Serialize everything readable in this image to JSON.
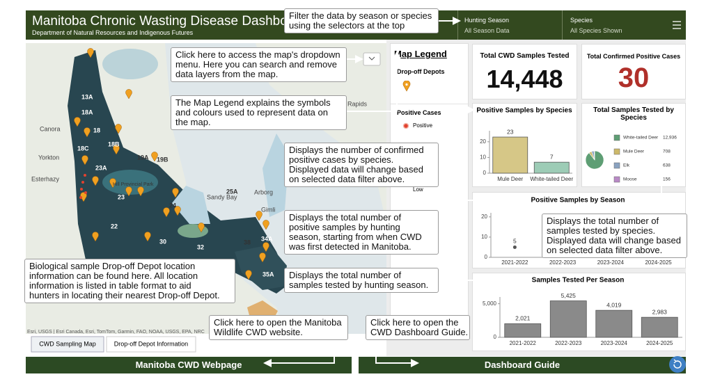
{
  "header": {
    "title": "Manitoba Chronic Wasting Disease Dashboard",
    "subtitle": "Department of Natural Resources and Indigenous Futures",
    "filters": [
      {
        "label": "Hunting Season",
        "value": "All Season Data"
      },
      {
        "label": "Species",
        "value": "All Species Shown"
      }
    ]
  },
  "map": {
    "labels": [
      "13A",
      "18A",
      "18",
      "18B",
      "18C",
      "19A",
      "19B",
      "23A",
      "23",
      "22",
      "24",
      "25A",
      "30",
      "32",
      "38",
      "34A",
      "35A",
      "Canora",
      "Yorkton",
      "Esterhazy",
      "Rapids",
      "Sandy Bay",
      "Hill Provincial Park",
      "Gimli",
      "Arborg"
    ],
    "attribution": "Esri, USGS | Esri Canada, Esri, TomTom, Garmin, FAO, NOAA, USGS, EPA, NRC",
    "tabs": [
      "CWD Sampling Map",
      "Drop-off Depot Information"
    ]
  },
  "legend": {
    "title": "Map Legend",
    "depots": "Drop-off Depots",
    "positive_cases": "Positive Cases",
    "positive": "Positive",
    "low": "Low"
  },
  "cards": [
    {
      "title": "Total CWD Samples Tested",
      "value": "14,448"
    },
    {
      "title": "Total Confirmed Positive Cases",
      "value": "30"
    }
  ],
  "charts": [
    {
      "type": "bar",
      "title": "Positive Samples by Species",
      "categories": [
        "Mule Deer",
        "White-tailed Deer"
      ],
      "values": [
        23,
        7
      ],
      "colors": [
        "#d6c787",
        "#9dccb6"
      ],
      "ylim": [
        0,
        27
      ],
      "yticks": [
        0,
        10,
        20
      ]
    },
    {
      "type": "pie",
      "title": "Total Samples Tested by Species",
      "categories": [
        "White-tailed Deer",
        "Mule Deer",
        "Elk",
        "Moose"
      ],
      "values": [
        12936,
        708,
        638,
        156
      ],
      "value_labels": [
        "12,936",
        "708",
        "638",
        "156"
      ],
      "colors": [
        "#5e9e74",
        "#cdb96a",
        "#8aa2c0",
        "#b98ac6"
      ]
    },
    {
      "type": "line",
      "title": "Positive Samples by Season",
      "categories": [
        "2021-2022",
        "2022-2023",
        "2023-2024",
        "2024-2025"
      ],
      "values": [
        5,
        null,
        null,
        null
      ],
      "color": "#555555",
      "ylim": [
        0,
        22
      ],
      "yticks": [
        0,
        10,
        20
      ]
    },
    {
      "type": "bar",
      "title": "Samples Tested Per Season",
      "categories": [
        "2021-2022",
        "2022-2023",
        "2023-2024",
        "2024-2025"
      ],
      "values": [
        2021,
        5425,
        4019,
        2983
      ],
      "value_labels": [
        "2,021",
        "5,425",
        "4,019",
        "2,983"
      ],
      "colors": [
        "#8a8a8a",
        "#8a8a8a",
        "#8a8a8a",
        "#8a8a8a"
      ],
      "ylim": [
        0,
        6000
      ],
      "yticks": [
        0,
        {
          "value": 5000,
          "label": "5,000"
        }
      ]
    }
  ],
  "annotations": [
    {
      "lines": [
        "Filter the data by season or species",
        "using the selectors at the top"
      ]
    },
    {
      "lines": [
        "Click here to access the map's dropdown",
        "menu. Here you can search and remove",
        "data layers from the map."
      ]
    },
    {
      "lines": [
        "The Map Legend explains the symbols",
        "and colours used to represent data on",
        "the map."
      ]
    },
    {
      "lines": [
        "Displays the number of confirmed",
        "positive cases by species.",
        "Displayed data will change based",
        "on selected data filter above."
      ]
    },
    {
      "lines": [
        "Displays the total number of",
        "positive samples by hunting",
        "season, starting from when CWD",
        "was first detected in Manitoba."
      ]
    },
    {
      "lines": [
        "Displays the total number of",
        "samples tested by species.",
        "Displayed data will change based",
        "on selected data filter above."
      ]
    },
    {
      "lines": [
        "Biological sample Drop-off Depot location",
        "information can be found here. All location",
        "information is listed in table format to aid",
        "hunters in locating their nearest Drop-off Depot."
      ]
    },
    {
      "lines": [
        "Displays the total number of",
        "samples tested by hunting season."
      ]
    },
    {
      "lines": [
        "Click here to open the Manitoba",
        "Wildlife CWD website."
      ]
    },
    {
      "lines": [
        "Click here to open the",
        "CWD Dashboard Guide."
      ]
    }
  ],
  "buttons": [
    "Manitoba CWD Webpage",
    "Dashboard Guide"
  ]
}
